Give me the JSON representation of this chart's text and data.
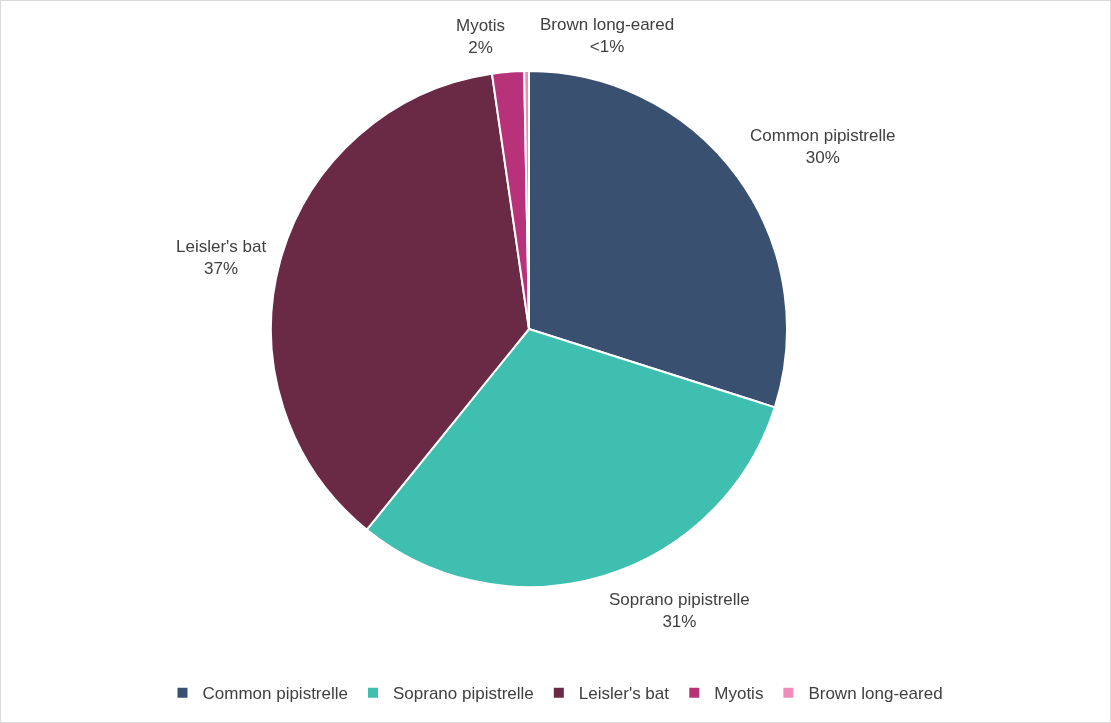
{
  "chart_data": {
    "type": "pie",
    "categories": [
      "Common pipistrelle",
      "Soprano pipistrelle",
      "Leisler's bat",
      "Myotis",
      "Brown long-eared"
    ],
    "values": [
      30,
      31,
      37,
      2,
      0.3
    ],
    "value_labels": [
      "30%",
      "31%",
      "37%",
      "2%",
      "<1%"
    ],
    "colors": [
      "#3a5070",
      "#3ebfaf",
      "#6a2a45",
      "#b8327a",
      "#f08cba"
    ],
    "legend": "bottom"
  }
}
